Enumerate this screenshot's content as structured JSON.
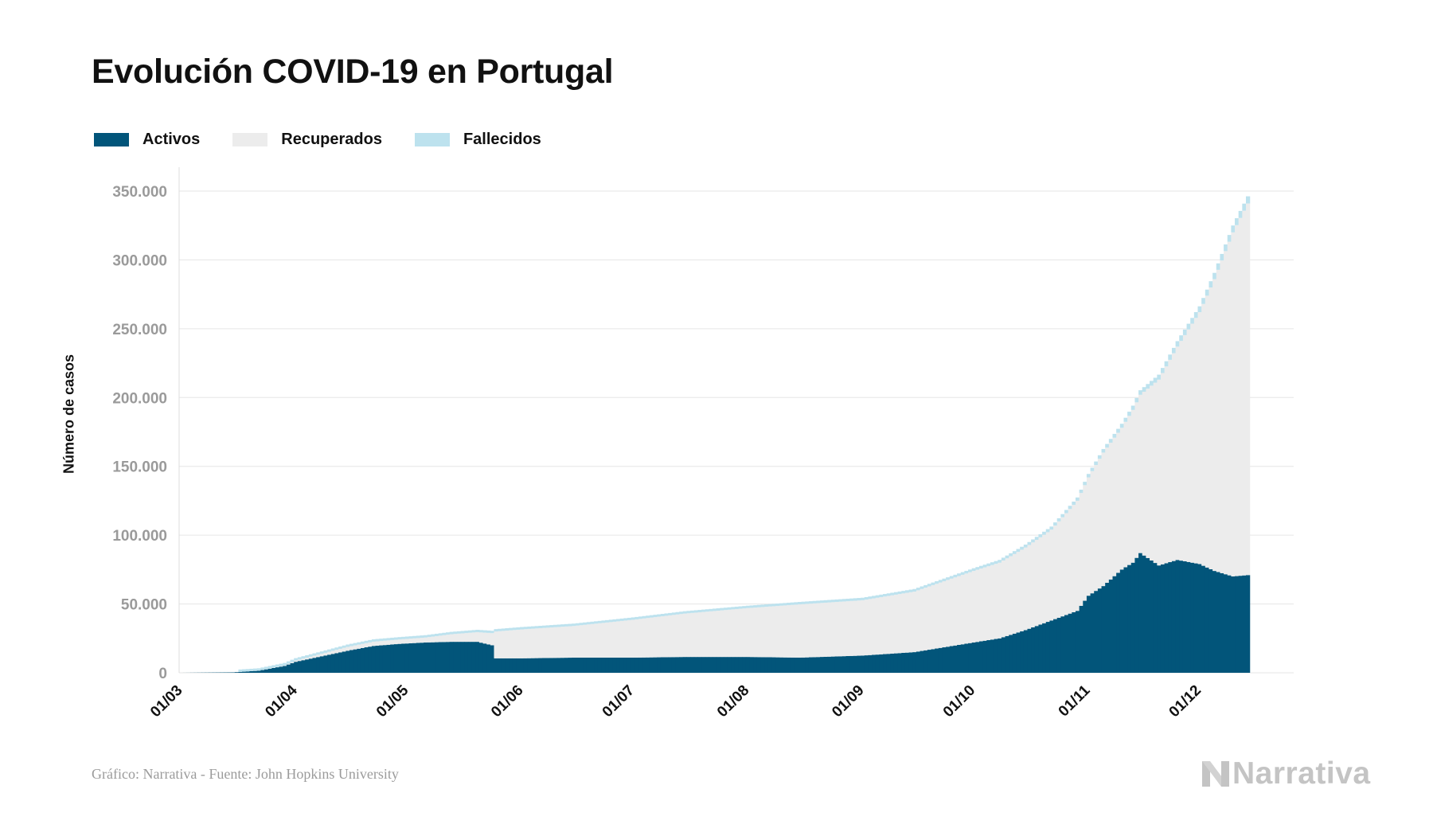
{
  "title": "Evolución COVID-19 en Portugal",
  "legend": [
    {
      "label": "Activos",
      "color": "#02557a"
    },
    {
      "label": "Recuperados",
      "color": "#ececec"
    },
    {
      "label": "Fallecidos",
      "color": "#bde2ee"
    }
  ],
  "footer": {
    "source": "Gráfico: Narrativa - Fuente: John Hopkins University",
    "brand": "Narrativa"
  },
  "chart_data": {
    "type": "area",
    "stacked": true,
    "title": "Evolución COVID-19 en Portugal",
    "xlabel": "",
    "ylabel": "Número de casos",
    "ylim": [
      0,
      350000
    ],
    "yticks": [
      0,
      50000,
      100000,
      150000,
      200000,
      250000,
      300000,
      350000
    ],
    "ytick_labels": [
      "0",
      "50.000",
      "100.000",
      "150.000",
      "200.000",
      "250.000",
      "300.000",
      "350.000"
    ],
    "xticks": [
      "01/03",
      "01/04",
      "01/05",
      "01/06",
      "01/07",
      "01/08",
      "01/09",
      "01/10",
      "01/11",
      "01/12"
    ],
    "grid": true,
    "legend_position": "top-left",
    "x": [
      "2020-03-01",
      "2020-03-15",
      "2020-03-22",
      "2020-03-29",
      "2020-04-01",
      "2020-04-08",
      "2020-04-15",
      "2020-04-22",
      "2020-04-29",
      "2020-05-06",
      "2020-05-13",
      "2020-05-20",
      "2020-05-24",
      "2020-05-25",
      "2020-06-01",
      "2020-06-15",
      "2020-07-01",
      "2020-07-15",
      "2020-08-01",
      "2020-08-15",
      "2020-09-01",
      "2020-09-15",
      "2020-10-01",
      "2020-10-08",
      "2020-10-15",
      "2020-10-22",
      "2020-10-29",
      "2020-11-01",
      "2020-11-05",
      "2020-11-10",
      "2020-11-13",
      "2020-11-15",
      "2020-11-20",
      "2020-11-25",
      "2020-12-01",
      "2020-12-05",
      "2020-12-10",
      "2020-12-14"
    ],
    "series": [
      {
        "name": "Activos",
        "values": [
          0,
          300,
          1500,
          5000,
          8000,
          12000,
          16000,
          19500,
          21000,
          22000,
          22500,
          22500,
          20000,
          10500,
          10500,
          11000,
          11000,
          11500,
          11500,
          11000,
          12500,
          15000,
          22000,
          25000,
          31000,
          38000,
          45000,
          56000,
          63000,
          75000,
          80000,
          87000,
          78000,
          82000,
          79000,
          74000,
          70000,
          71000
        ]
      },
      {
        "name": "Recuperados",
        "values": [
          0,
          0,
          40,
          400,
          900,
          1800,
          2800,
          3100,
          3200,
          3600,
          5500,
          7000,
          8800,
          19500,
          21000,
          23000,
          27500,
          31500,
          35500,
          38700,
          40200,
          44000,
          52000,
          55000,
          60000,
          66000,
          80000,
          86000,
          97000,
          103000,
          111000,
          115000,
          135000,
          155000,
          183000,
          212000,
          250000,
          270000
        ]
      },
      {
        "name": "Fallecidos",
        "values": [
          0,
          0,
          15,
          100,
          190,
          440,
          620,
          780,
          960,
          1080,
          1170,
          1270,
          1300,
          1340,
          1420,
          1530,
          1590,
          1680,
          1730,
          1780,
          1830,
          1880,
          1960,
          2040,
          2150,
          2250,
          2380,
          2470,
          2600,
          2920,
          3100,
          3300,
          3620,
          3970,
          4270,
          4580,
          5000,
          5200
        ]
      }
    ]
  }
}
